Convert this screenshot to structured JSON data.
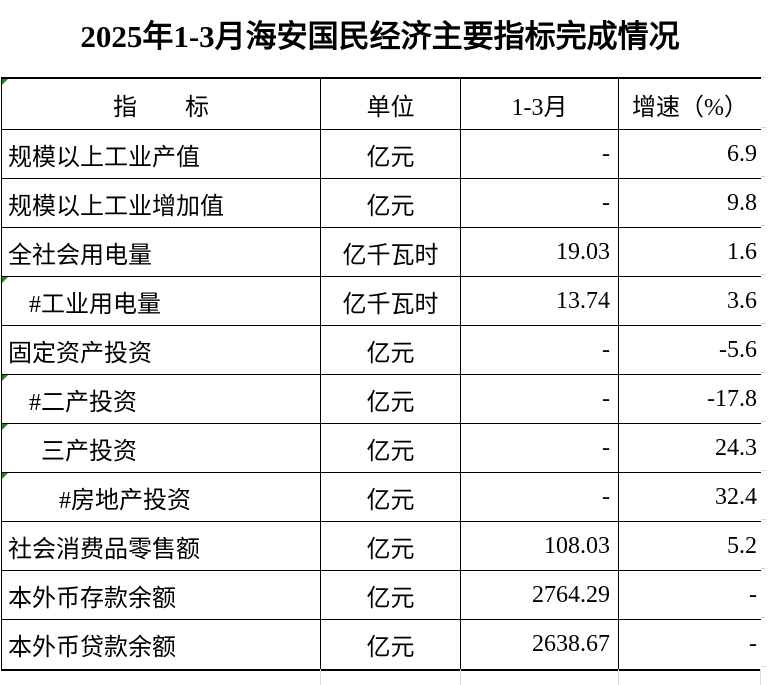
{
  "title": "2025年1-3月海安国民经济主要指标完成情况",
  "table": {
    "headers": {
      "indicator": "指　　标",
      "unit": "单位",
      "period": "1-3月",
      "growth": "增速（%）"
    },
    "rows": [
      {
        "name": "规模以上工业产值",
        "unit": "亿元",
        "value": "-",
        "growth": "6.9"
      },
      {
        "name": "规模以上工业增加值",
        "unit": "亿元",
        "value": "-",
        "growth": "9.8"
      },
      {
        "name": "全社会用电量",
        "unit": "亿千瓦时",
        "value": "19.03",
        "growth": "1.6"
      },
      {
        "name": "#工业用电量",
        "unit": "亿千瓦时",
        "value": "13.74",
        "growth": "3.6"
      },
      {
        "name": "固定资产投资",
        "unit": "亿元",
        "value": "-",
        "growth": "-5.6"
      },
      {
        "name": "#二产投资",
        "unit": "亿元",
        "value": "-",
        "growth": "-17.8"
      },
      {
        "name": "三产投资",
        "unit": "亿元",
        "value": "-",
        "growth": "24.3"
      },
      {
        "name": "#房地产投资",
        "unit": "亿元",
        "value": "-",
        "growth": "32.4"
      },
      {
        "name": "社会消费品零售额",
        "unit": "亿元",
        "value": "108.03",
        "growth": "5.2"
      },
      {
        "name": "本外币存款余额",
        "unit": "亿元",
        "value": "2764.29",
        "growth": "-"
      },
      {
        "name": "本外币贷款余额",
        "unit": "亿元",
        "value": "2638.67",
        "growth": "-"
      }
    ]
  },
  "colors": {
    "border": "#000000",
    "gridline_faint": "#d9d9d9",
    "error_indicator_green": "#1f8a1f"
  }
}
